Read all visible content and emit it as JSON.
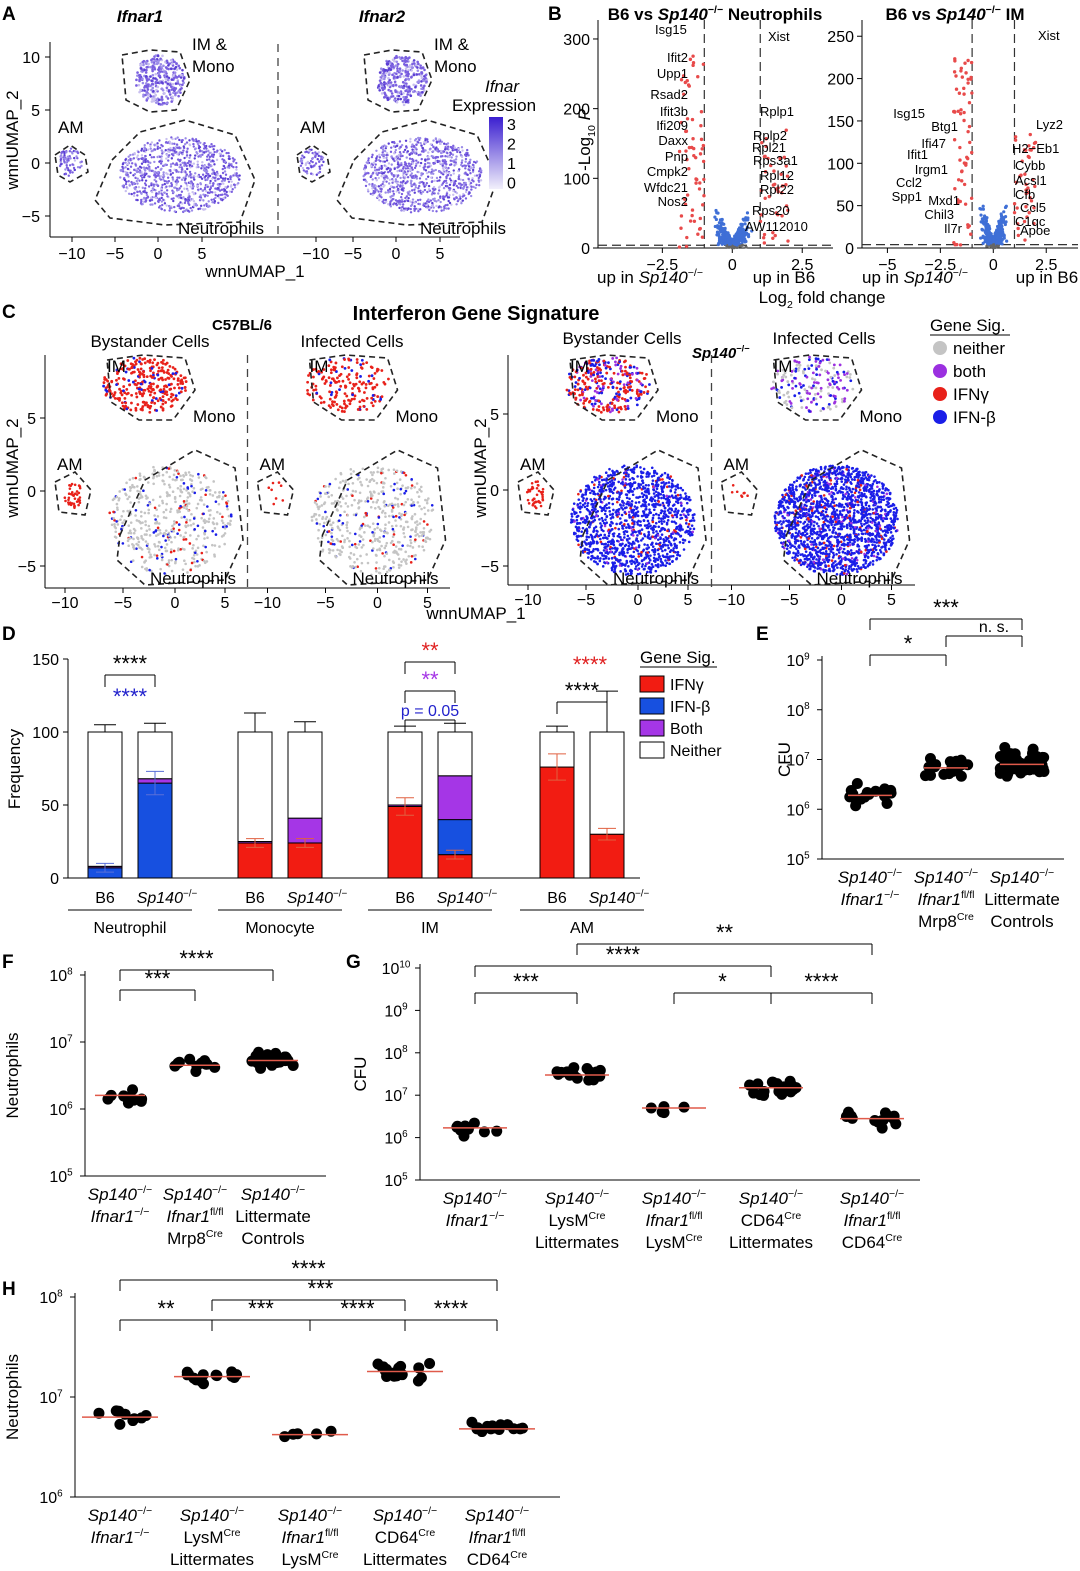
{
  "chart_data": [
    {
      "panel": "A",
      "type": "scatter",
      "titles": [
        "Ifnar1",
        "Ifnar2"
      ],
      "xlabel": "wnnUMAP_1",
      "ylabel": "wnnUMAP_2",
      "xticks": [
        "−10",
        "−5",
        "0",
        "5"
      ],
      "yticks": [
        "10",
        "5",
        "0",
        "−5"
      ],
      "clusters": [
        "AM",
        "IM &",
        "Mono",
        "Neutrophils"
      ],
      "legend": {
        "title1": "Ifnar",
        "title2": "Expression",
        "ticks": [
          "3",
          "2",
          "1",
          "0"
        ]
      }
    },
    {
      "panel": "B",
      "type": "scatter",
      "titles": [
        {
          "pre": "B6 vs ",
          "italic": "Sp140",
          "sup": "−/−",
          "post": " Neutrophils"
        },
        {
          "pre": "B6 vs ",
          "italic": "Sp140",
          "sup": "−/−",
          "post": " IM"
        }
      ],
      "xlabel": "fold change",
      "xlabel_pre": "Log",
      "xlabel_sub": "2",
      "ylabel": "P",
      "ylabel_pre": "-Log",
      "ylabel_sub": "10",
      "left": {
        "xticks": [
          "−2.5",
          "0",
          "2.5"
        ],
        "yticks": [
          "300",
          "200",
          "100",
          "0"
        ],
        "genes_down": [
          "Isg15",
          "Ifit2",
          "Upp1",
          "Rsad2",
          "Ifit3b",
          "Ifi209",
          "Daxx",
          "Pnp",
          "Cmpk2",
          "Wfdc21",
          "Nos2"
        ],
        "genes_up": [
          "Xist",
          "Rplp1",
          "Rplp2",
          "Rpl21",
          "Rps3a1",
          "Rpl12",
          "Rpl22",
          "Rps20",
          "AW112010"
        ]
      },
      "right": {
        "xticks": [
          "−5",
          "−2.5",
          "0",
          "2.5"
        ],
        "yticks": [
          "250",
          "200",
          "150",
          "100",
          "50",
          "0"
        ],
        "genes_down": [
          "Isg15",
          "Btg1",
          "Ifi47",
          "Ifit1",
          "Irgm1",
          "Ccl2",
          "Spp1",
          "Mxd1",
          "Chil3",
          "Il7r"
        ],
        "genes_up": [
          "Xist",
          "Lyz2",
          "H2−Eb1",
          "Cybb",
          "Acsl1",
          "Cfb",
          "Ccl5",
          "C1qc",
          "Apoe"
        ]
      },
      "bottom_labels": {
        "up_in": "up in ",
        "sp": "Sp140",
        "sup": "−/−",
        "b6": "up in B6"
      }
    },
    {
      "panel": "C",
      "type": "scatter",
      "title": "Interferon Gene Signature",
      "groups": [
        "C57BL/6",
        "Sp140"
      ],
      "group_sup": "−/−",
      "subtitles": [
        "Bystander Cells",
        "Infected Cells",
        "Bystander Cells",
        "Infected Cells"
      ],
      "xlabel": "wnnUMAP_1",
      "ylabel": "wnnUMAP_2",
      "xticks": [
        "−10",
        "−5",
        "0",
        "5"
      ],
      "yticks": [
        "5",
        "0",
        "−5"
      ],
      "clusters": [
        "IM",
        "Mono",
        "AM",
        "Neutrophils"
      ],
      "legend": {
        "title": "Gene Sig.",
        "items": [
          "neither",
          "both",
          "IFNγ",
          "IFN-β"
        ],
        "colors": [
          "#c4c4c4",
          "#9b30e0",
          "#e8211a",
          "#1a1ee8"
        ]
      }
    },
    {
      "panel": "D",
      "type": "bar",
      "ylabel": "Frequency",
      "ylim": [
        0,
        150
      ],
      "yticks": [
        "150",
        "100",
        "50",
        "0"
      ],
      "cell_types": [
        "Neutrophil",
        "Monocyte",
        "IM",
        "AM"
      ],
      "genotypes": [
        "B6",
        "Sp140"
      ],
      "genotype_sup": "−/−",
      "series_order": [
        "IFNγ",
        "IFN-β",
        "Both",
        "Neither"
      ],
      "legend": {
        "title": "Gene Sig.",
        "items": [
          "IFNγ",
          "IFN-β",
          "Both",
          "Neither"
        ],
        "colors": [
          "#f21c12",
          "#1750e0",
          "#a536e6",
          "#ffffff"
        ]
      },
      "bars": [
        {
          "cell": "Neutrophil",
          "genotype": "B6",
          "IFNγ": 0,
          "IFN-β": 7,
          "Both": 1,
          "Neither": 92,
          "err": 5
        },
        {
          "cell": "Neutrophil",
          "genotype": "Sp140",
          "IFNγ": 0,
          "IFN-β": 65,
          "Both": 3,
          "Neither": 32,
          "err": 6
        },
        {
          "cell": "Monocyte",
          "genotype": "B6",
          "IFNγ": 24,
          "IFN-β": 0,
          "Both": 1,
          "Neither": 75,
          "err": 13
        },
        {
          "cell": "Monocyte",
          "genotype": "Sp140",
          "IFNγ": 24,
          "IFN-β": 0,
          "Both": 17,
          "Neither": 59,
          "err": 7
        },
        {
          "cell": "IM",
          "genotype": "B6",
          "IFNγ": 49,
          "IFN-β": 0,
          "Both": 1,
          "Neither": 50,
          "err": 4
        },
        {
          "cell": "IM",
          "genotype": "Sp140",
          "IFNγ": 16,
          "IFN-β": 24,
          "Both": 30,
          "Neither": 30,
          "err": 6
        },
        {
          "cell": "AM",
          "genotype": "B6",
          "IFNγ": 76,
          "IFN-β": 0,
          "Both": 0,
          "Neither": 24,
          "err": 4
        },
        {
          "cell": "AM",
          "genotype": "Sp140",
          "IFNγ": 30,
          "IFN-β": 0,
          "Both": 0,
          "Neither": 70,
          "err": 28
        }
      ],
      "annotations": [
        {
          "cell": "Neutrophil",
          "text": "****",
          "color": "#000000"
        },
        {
          "cell": "Neutrophil",
          "text": "****",
          "color": "#2222cc"
        },
        {
          "cell": "IM",
          "text": "**",
          "color": "#e02020"
        },
        {
          "cell": "IM",
          "text": "**",
          "color": "#a536e6"
        },
        {
          "cell": "IM",
          "text": "p = 0.05",
          "color": "#2222cc"
        },
        {
          "cell": "AM",
          "text": "****",
          "color": "#e02020"
        },
        {
          "cell": "AM",
          "text": "****",
          "color": "#000000"
        }
      ]
    },
    {
      "panel": "E",
      "type": "scatter",
      "ylabel": "CFU",
      "yscale": "log",
      "ylim": [
        100000,
        1000000000
      ],
      "ytick_exponents": [
        "9",
        "8",
        "7",
        "6",
        "5"
      ],
      "groups": [
        {
          "lines": [
            {
              "it": "Sp140",
              "sup": "−/−"
            },
            {
              "it": "Ifnar1",
              "sup": "−/−"
            }
          ],
          "median": 1900000,
          "n": 16
        },
        {
          "lines": [
            {
              "it": "Sp140",
              "sup": "−/−"
            },
            {
              "it": "Ifnar1",
              "sup": "fl/fl"
            },
            {
              "t": "Mrp8",
              "sup": "Cre"
            }
          ],
          "median": 6800000,
          "n": 18
        },
        {
          "lines": [
            {
              "it": "Sp140",
              "sup": "−/−"
            },
            {
              "t": "Littermate"
            },
            {
              "t": "Controls"
            }
          ],
          "median": 8000000,
          "n": 60
        }
      ],
      "significance": [
        {
          "from": 0,
          "to": 1,
          "label": "*"
        },
        {
          "from": 1,
          "to": 2,
          "label": "n. s."
        },
        {
          "from": 0,
          "to": 2,
          "label": "***"
        }
      ]
    },
    {
      "panel": "F",
      "type": "scatter",
      "ylabel": "Neutrophils",
      "yscale": "log",
      "ylim": [
        100000,
        100000000
      ],
      "ytick_exponents": [
        "8",
        "7",
        "6",
        "5"
      ],
      "groups": [
        {
          "lines": [
            {
              "it": "Sp140",
              "sup": "−/−"
            },
            {
              "it": "Ifnar1",
              "sup": "−/−"
            }
          ],
          "median": 1600000,
          "n": 11
        },
        {
          "lines": [
            {
              "it": "Sp140",
              "sup": "−/−"
            },
            {
              "it": "Ifnar1",
              "sup": "fl/fl"
            },
            {
              "t": "Mrp8",
              "sup": "Cre"
            }
          ],
          "median": 4500000,
          "n": 11
        },
        {
          "lines": [
            {
              "it": "Sp140",
              "sup": "−/−"
            },
            {
              "t": "Littermate"
            },
            {
              "t": "Controls"
            }
          ],
          "median": 5300000,
          "n": 32
        }
      ],
      "significance": [
        {
          "from": 0,
          "to": 1,
          "label": "***"
        },
        {
          "from": 0,
          "to": 2,
          "label": "****"
        }
      ]
    },
    {
      "panel": "G",
      "type": "scatter",
      "ylabel": "CFU",
      "yscale": "log",
      "ylim": [
        100000,
        10000000000
      ],
      "ytick_exponents": [
        "10",
        "9",
        "8",
        "7",
        "6",
        "5"
      ],
      "groups": [
        {
          "lines": [
            {
              "it": "Sp140",
              "sup": "−/−"
            },
            {
              "it": "Ifnar1",
              "sup": "−/−"
            }
          ],
          "median": 1700000,
          "n": 10
        },
        {
          "lines": [
            {
              "it": "Sp140",
              "sup": "−/−"
            },
            {
              "t": "LysM",
              "sup": "Cre"
            },
            {
              "t": "Littermates"
            }
          ],
          "median": 30000000,
          "n": 15
        },
        {
          "lines": [
            {
              "it": "Sp140",
              "sup": "−/−"
            },
            {
              "it": "Ifnar1",
              "sup": "fl/fl"
            },
            {
              "t": "LysM",
              "sup": "Cre"
            }
          ],
          "median": 5000000,
          "n": 5
        },
        {
          "lines": [
            {
              "it": "Sp140",
              "sup": "−/−"
            },
            {
              "t": "CD64",
              "sup": "Cre"
            },
            {
              "t": "Littermates"
            }
          ],
          "median": 15000000,
          "n": 22
        },
        {
          "lines": [
            {
              "it": "Sp140",
              "sup": "−/−"
            },
            {
              "it": "Ifnar1",
              "sup": "fl/fl"
            },
            {
              "t": "CD64",
              "sup": "Cre"
            }
          ],
          "median": 2800000,
          "n": 14
        }
      ],
      "significance": [
        {
          "from": 0,
          "to": 1,
          "label": "***"
        },
        {
          "from": 2,
          "to": 3,
          "label": "*"
        },
        {
          "from": 3,
          "to": 4,
          "label": "****"
        },
        {
          "from": 0,
          "to": 3,
          "label": "****"
        },
        {
          "from": 1,
          "to": 4,
          "label": "**"
        }
      ]
    },
    {
      "panel": "H",
      "type": "scatter",
      "ylabel": "Neutrophils",
      "yscale": "log",
      "ylim": [
        1000000,
        100000000
      ],
      "ytick_exponents": [
        "8",
        "7",
        "6"
      ],
      "groups": [
        {
          "lines": [
            {
              "it": "Sp140",
              "sup": "−/−"
            },
            {
              "it": "Ifnar1",
              "sup": "−/−"
            }
          ],
          "median": 6300000,
          "n": 9
        },
        {
          "lines": [
            {
              "it": "Sp140",
              "sup": "−/−"
            },
            {
              "t": "LysM",
              "sup": "Cre"
            },
            {
              "t": "Littermates"
            }
          ],
          "median": 16000000,
          "n": 15
        },
        {
          "lines": [
            {
              "it": "Sp140",
              "sup": "−/−"
            },
            {
              "it": "Ifnar1",
              "sup": "fl/fl"
            },
            {
              "t": "LysM",
              "sup": "Cre"
            }
          ],
          "median": 4200000,
          "n": 5
        },
        {
          "lines": [
            {
              "it": "Sp140",
              "sup": "−/−"
            },
            {
              "t": "CD64",
              "sup": "Cre"
            },
            {
              "t": "Littermates"
            }
          ],
          "median": 18000000,
          "n": 17
        },
        {
          "lines": [
            {
              "it": "Sp140",
              "sup": "−/−"
            },
            {
              "it": "Ifnar1",
              "sup": "fl/fl"
            },
            {
              "t": "CD64",
              "sup": "Cre"
            }
          ],
          "median": 4800000,
          "n": 14
        }
      ],
      "significance": [
        {
          "from": 0,
          "to": 1,
          "label": "**"
        },
        {
          "from": 1,
          "to": 2,
          "label": "***"
        },
        {
          "from": 2,
          "to": 3,
          "label": "****"
        },
        {
          "from": 3,
          "to": 4,
          "label": "****"
        },
        {
          "from": 1,
          "to": 3,
          "label": "***"
        },
        {
          "from": 0,
          "to": 4,
          "label": "****"
        }
      ]
    }
  ]
}
